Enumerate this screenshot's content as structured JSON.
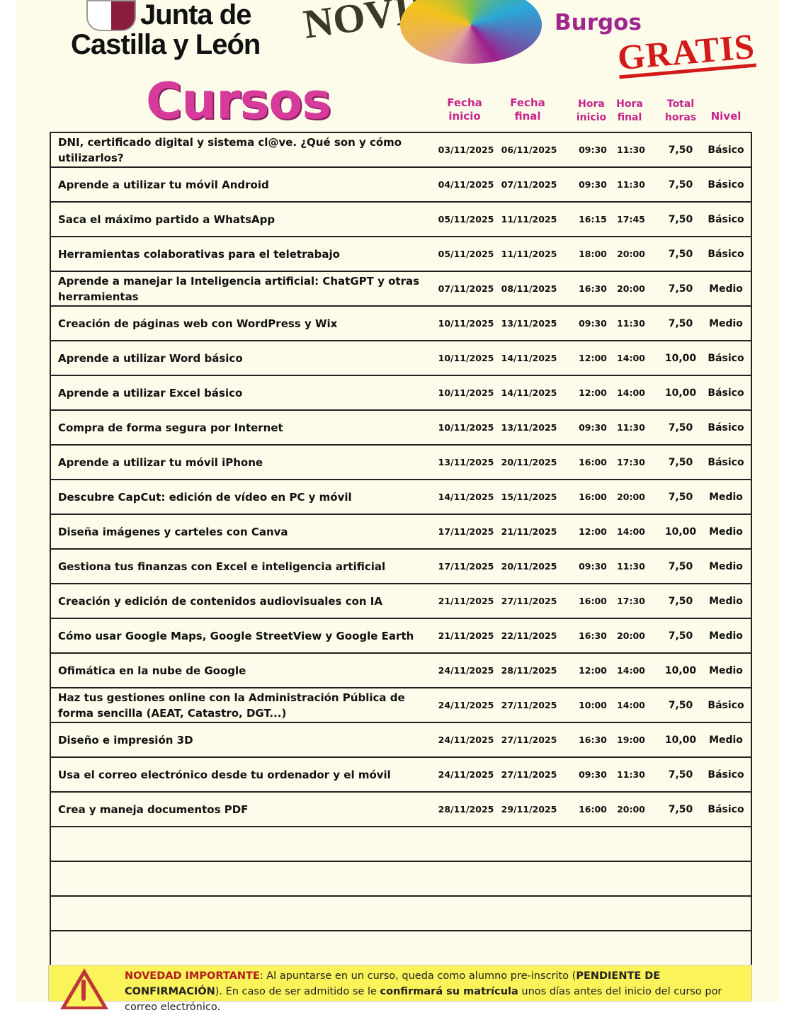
{
  "header": {
    "org_line1": "Junta de",
    "org_line2": "Castilla y León",
    "month_partial": "NOVIE",
    "city": "Burgos",
    "badge": "GRATIS",
    "title": "Cursos"
  },
  "columns": {
    "start_date": "Fecha\ninicio",
    "end_date": "Fecha\nfinal",
    "start_time": "Hora\ninicio",
    "end_time": "Hora\nfinal",
    "total_hours": "Total\nhoras",
    "level": "Nivel"
  },
  "courses": [
    {
      "name": "DNI, certificado digital y sistema cl@ve. ¿Qué son y cómo utilizarlos?",
      "start": "03/11/2025",
      "end": "06/11/2025",
      "from": "09:30",
      "to": "11:30",
      "hours": "7,50",
      "level": "Básico"
    },
    {
      "name": "Aprende a utilizar tu móvil Android",
      "start": "04/11/2025",
      "end": "07/11/2025",
      "from": "09:30",
      "to": "11:30",
      "hours": "7,50",
      "level": "Básico"
    },
    {
      "name": "Saca el máximo partido a WhatsApp",
      "start": "05/11/2025",
      "end": "11/11/2025",
      "from": "16:15",
      "to": "17:45",
      "hours": "7,50",
      "level": "Básico"
    },
    {
      "name": "Herramientas colaborativas para el teletrabajo",
      "start": "05/11/2025",
      "end": "11/11/2025",
      "from": "18:00",
      "to": "20:00",
      "hours": "7,50",
      "level": "Básico"
    },
    {
      "name": "Aprende a manejar la Inteligencia artificial: ChatGPT y otras herramientas",
      "start": "07/11/2025",
      "end": "08/11/2025",
      "from": "16:30",
      "to": "20:00",
      "hours": "7,50",
      "level": "Medio"
    },
    {
      "name": "Creación de páginas web con WordPress y Wix",
      "start": "10/11/2025",
      "end": "13/11/2025",
      "from": "09:30",
      "to": "11:30",
      "hours": "7,50",
      "level": "Medio"
    },
    {
      "name": "Aprende a utilizar Word básico",
      "start": "10/11/2025",
      "end": "14/11/2025",
      "from": "12:00",
      "to": "14:00",
      "hours": "10,00",
      "level": "Básico"
    },
    {
      "name": "Aprende a utilizar Excel básico",
      "start": "10/11/2025",
      "end": "14/11/2025",
      "from": "12:00",
      "to": "14:00",
      "hours": "10,00",
      "level": "Básico"
    },
    {
      "name": "Compra de forma segura por Internet",
      "start": "10/11/2025",
      "end": "13/11/2025",
      "from": "09:30",
      "to": "11:30",
      "hours": "7,50",
      "level": "Básico"
    },
    {
      "name": "Aprende a utilizar tu móvil iPhone",
      "start": "13/11/2025",
      "end": "20/11/2025",
      "from": "16:00",
      "to": "17:30",
      "hours": "7,50",
      "level": "Básico"
    },
    {
      "name": "Descubre CapCut: edición de vídeo en PC y móvil",
      "start": "14/11/2025",
      "end": "15/11/2025",
      "from": "16:00",
      "to": "20:00",
      "hours": "7,50",
      "level": "Medio"
    },
    {
      "name": "Diseña imágenes y carteles con Canva",
      "start": "17/11/2025",
      "end": "21/11/2025",
      "from": "12:00",
      "to": "14:00",
      "hours": "10,00",
      "level": "Medio"
    },
    {
      "name": "Gestiona tus finanzas con Excel e inteligencia artificial",
      "start": "17/11/2025",
      "end": "20/11/2025",
      "from": "09:30",
      "to": "11:30",
      "hours": "7,50",
      "level": "Medio"
    },
    {
      "name": "Creación y edición de contenidos audiovisuales con IA",
      "start": "21/11/2025",
      "end": "27/11/2025",
      "from": "16:00",
      "to": "17:30",
      "hours": "7,50",
      "level": "Medio"
    },
    {
      "name": "Cómo usar Google Maps, Google StreetView y Google Earth",
      "start": "21/11/2025",
      "end": "22/11/2025",
      "from": "16:30",
      "to": "20:00",
      "hours": "7,50",
      "level": "Medio"
    },
    {
      "name": "Ofimática en la nube de Google",
      "start": "24/11/2025",
      "end": "28/11/2025",
      "from": "12:00",
      "to": "14:00",
      "hours": "10,00",
      "level": "Medio"
    },
    {
      "name": "Haz tus gestiones online con la Administración Pública de forma sencilla (AEAT, Catastro, DGT...)",
      "start": "24/11/2025",
      "end": "27/11/2025",
      "from": "10:00",
      "to": "14:00",
      "hours": "7,50",
      "level": "Básico"
    },
    {
      "name": "Diseño e impresión 3D",
      "start": "24/11/2025",
      "end": "27/11/2025",
      "from": "16:30",
      "to": "19:00",
      "hours": "10,00",
      "level": "Medio"
    },
    {
      "name": "Usa el correo electrónico desde tu ordenador y el móvil",
      "start": "24/11/2025",
      "end": "27/11/2025",
      "from": "09:30",
      "to": "11:30",
      "hours": "7,50",
      "level": "Básico"
    },
    {
      "name": "Crea y maneja documentos PDF",
      "start": "28/11/2025",
      "end": "29/11/2025",
      "from": "16:00",
      "to": "20:00",
      "hours": "7,50",
      "level": "Básico"
    }
  ],
  "notice": {
    "label": "NOVEDAD IMPORTANTE",
    "t1": ": Al apuntarse en un curso, queda como alumno pre-inscrito (",
    "b1": "PENDIENTE DE CONFIRMACIÓN",
    "t2": "). En caso de ser admitido se le ",
    "b2": "confirmará su matrícula",
    "t3": " unos días antes del inicio del curso por correo electrónico.",
    "icon": "warning-triangle-icon"
  },
  "colors": {
    "accent": "#c4258c",
    "badge": "#d21a1a",
    "notice_bg": "#fbf35a"
  }
}
